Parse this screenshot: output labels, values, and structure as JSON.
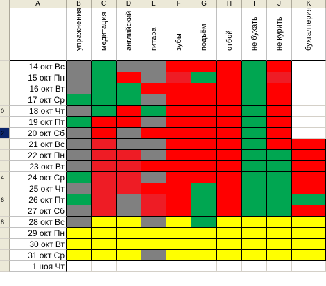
{
  "columns": {
    "letters": [
      "A",
      "B",
      "C",
      "D",
      "E",
      "F",
      "G",
      "H",
      "I",
      "J",
      "K"
    ],
    "habits": [
      "упражнения",
      "медитация",
      "английский",
      "гитара",
      "зубы",
      "подъём",
      "отбой",
      "не бухать",
      "не курить",
      "бухгалтерия"
    ]
  },
  "row_headers": [
    "",
    "",
    "",
    "",
    "0",
    "",
    "2",
    "",
    "",
    "",
    "4",
    "",
    "6",
    "",
    "8",
    "",
    "",
    "",
    ""
  ],
  "dates": [
    "14 окт Вс",
    "15 окт Пн",
    "16 окт Вт",
    "17 окт Ср",
    "18 окт Чт",
    "19 окт Пт",
    "20 окт Сб",
    "21 окт Вс",
    "22 окт Пн",
    "23 окт Вт",
    "24 окт Ср",
    "25 окт Чт",
    "26 окт Пт",
    "27 окт Сб",
    "28 окт Вс",
    "29 окт Пн",
    "30 окт Вт",
    "31 окт Ср",
    "1 ноя Чт"
  ],
  "grid": [
    [
      "g",
      "G",
      "g",
      "g",
      "r",
      "r",
      "r",
      "G",
      "r",
      "w"
    ],
    [
      "g",
      "G",
      "r",
      "g",
      "R",
      "G",
      "r",
      "G",
      "R",
      "w"
    ],
    [
      "g",
      "G",
      "G",
      "r",
      "r",
      "r",
      "r",
      "G",
      "r",
      "w"
    ],
    [
      "G",
      "G",
      "G",
      "g",
      "r",
      "r",
      "r",
      "G",
      "r",
      "w"
    ],
    [
      "g",
      "G",
      "r",
      "G",
      "r",
      "r",
      "r",
      "G",
      "r",
      "w"
    ],
    [
      "G",
      "r",
      "r",
      "g",
      "r",
      "r",
      "r",
      "G",
      "r",
      "w"
    ],
    [
      "g",
      "r",
      "g",
      "r",
      "r",
      "r",
      "r",
      "G",
      "r",
      "w"
    ],
    [
      "g",
      "R",
      "g",
      "g",
      "r",
      "r",
      "r",
      "G",
      "r",
      "r"
    ],
    [
      "g",
      "R",
      "R",
      "g",
      "r",
      "r",
      "r",
      "G",
      "G",
      "r"
    ],
    [
      "g",
      "R",
      "R",
      "r",
      "r",
      "r",
      "r",
      "G",
      "G",
      "r"
    ],
    [
      "G",
      "R",
      "R",
      "g",
      "r",
      "r",
      "r",
      "G",
      "G",
      "r"
    ],
    [
      "g",
      "R",
      "R",
      "r",
      "r",
      "G",
      "r",
      "G",
      "G",
      "r"
    ],
    [
      "G",
      "R",
      "g",
      "R",
      "r",
      "G",
      "r",
      "G",
      "G",
      "G"
    ],
    [
      "g",
      "R",
      "g",
      "R",
      "r",
      "G",
      "r",
      "G",
      "G",
      "r"
    ],
    [
      "g",
      "y",
      "y",
      "g",
      "y",
      "G",
      "y",
      "y",
      "y",
      "y"
    ],
    [
      "y",
      "y",
      "y",
      "y",
      "y",
      "y",
      "y",
      "y",
      "y",
      "y"
    ],
    [
      "y",
      "y",
      "y",
      "y",
      "y",
      "y",
      "y",
      "y",
      "y",
      "y"
    ],
    [
      "y",
      "y",
      "y",
      "g",
      "y",
      "y",
      "y",
      "y",
      "y",
      "y"
    ],
    [
      "w",
      "w",
      "w",
      "w",
      "w",
      "w",
      "w",
      "w",
      "w",
      "w"
    ]
  ],
  "colors": {
    "gray": "#808080",
    "green": "#00a651",
    "red": "#ff0000",
    "yellow": "#ffff00",
    "selection": "#0a246a"
  }
}
